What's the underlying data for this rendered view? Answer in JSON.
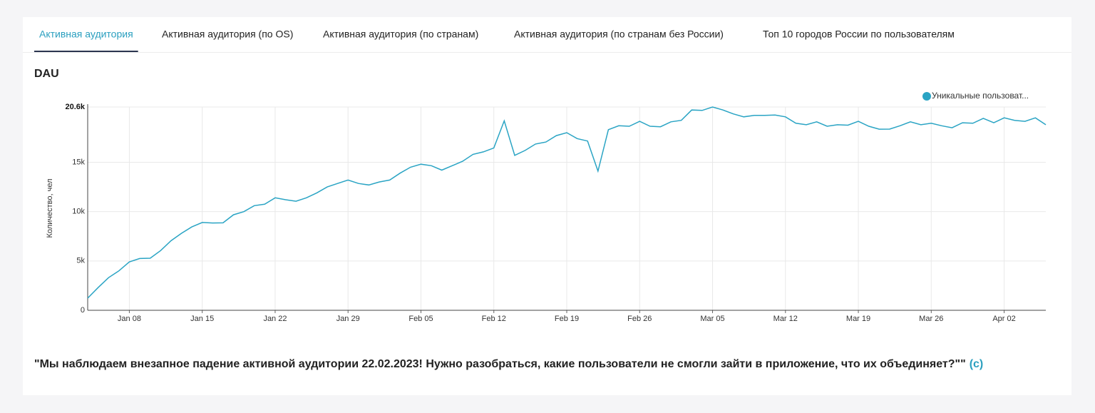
{
  "tabs": [
    "Активная аудитория",
    "Активная аудитория (по OS)",
    "Активная аудитория (по странам)",
    "Активная аудитория (по странам без России)",
    "Топ 10 городов России по пользователям"
  ],
  "active_tab": 0,
  "panel_title": "DAU",
  "chart_data": {
    "type": "line",
    "ylabel": "Количество, чел",
    "categories": [
      null,
      null,
      null,
      null,
      "Jan 08",
      null,
      null,
      null,
      null,
      null,
      null,
      "Jan 15",
      null,
      null,
      null,
      null,
      null,
      null,
      "Jan 22",
      null,
      null,
      null,
      null,
      null,
      null,
      "Jan 29",
      null,
      null,
      null,
      null,
      null,
      null,
      "Feb 05",
      null,
      null,
      null,
      null,
      null,
      null,
      "Feb 12",
      null,
      null,
      null,
      null,
      null,
      null,
      "Feb 19",
      null,
      null,
      null,
      null,
      null,
      null,
      "Feb 26",
      null,
      null,
      null,
      null,
      null,
      null,
      "Mar 05",
      null,
      null,
      null,
      null,
      null,
      null,
      "Mar 12",
      null,
      null,
      null,
      null,
      null,
      null,
      "Mar 19",
      null,
      null,
      null,
      null,
      null,
      null,
      "Mar 26",
      null,
      null,
      null,
      null,
      null,
      null,
      "Apr 02",
      null,
      null,
      null,
      null
    ],
    "series": [
      {
        "name": "Уникальные пользоват...",
        "color": "#2aa4c4",
        "values": [
          1230,
          2300,
          3300,
          4000,
          4900,
          5250,
          5280,
          6050,
          7050,
          7800,
          8450,
          8900,
          8850,
          8860,
          9680,
          10000,
          10600,
          10750,
          11400,
          11200,
          11050,
          11400,
          11900,
          12500,
          12850,
          13200,
          12850,
          12700,
          13000,
          13200,
          13900,
          14500,
          14800,
          14650,
          14200,
          14650,
          15100,
          15800,
          16050,
          16450,
          19200,
          15700,
          16200,
          16850,
          17050,
          17700,
          18000,
          17400,
          17150,
          14100,
          18300,
          18700,
          18650,
          19150,
          18650,
          18600,
          19100,
          19250,
          20300,
          20250,
          20600,
          20300,
          19900,
          19600,
          19750,
          19750,
          19780,
          19600,
          18950,
          18800,
          19100,
          18650,
          18800,
          18760,
          19150,
          18650,
          18350,
          18360,
          18700,
          19100,
          18800,
          18950,
          18700,
          18500,
          19000,
          18950,
          19450,
          19000,
          19500,
          19250,
          19150,
          19500,
          18800
        ]
      }
    ],
    "ylim": [
      0,
      20600
    ],
    "yticks": [
      0,
      {
        "value": 5000,
        "label": "5k"
      },
      {
        "value": 10000,
        "label": "10k"
      },
      {
        "value": 15000,
        "label": "15k"
      },
      {
        "value": 20600,
        "label": "20.6k"
      }
    ],
    "grid": true,
    "legend": "top-right"
  },
  "note": {
    "quote": "\"Мы наблюдаем внезапное падение активной аудитории 22.02.2023! Нужно разобраться, какие пользователи не смогли зайти в приложение, что их объединяет?\"\"",
    "signature": "(c)"
  }
}
